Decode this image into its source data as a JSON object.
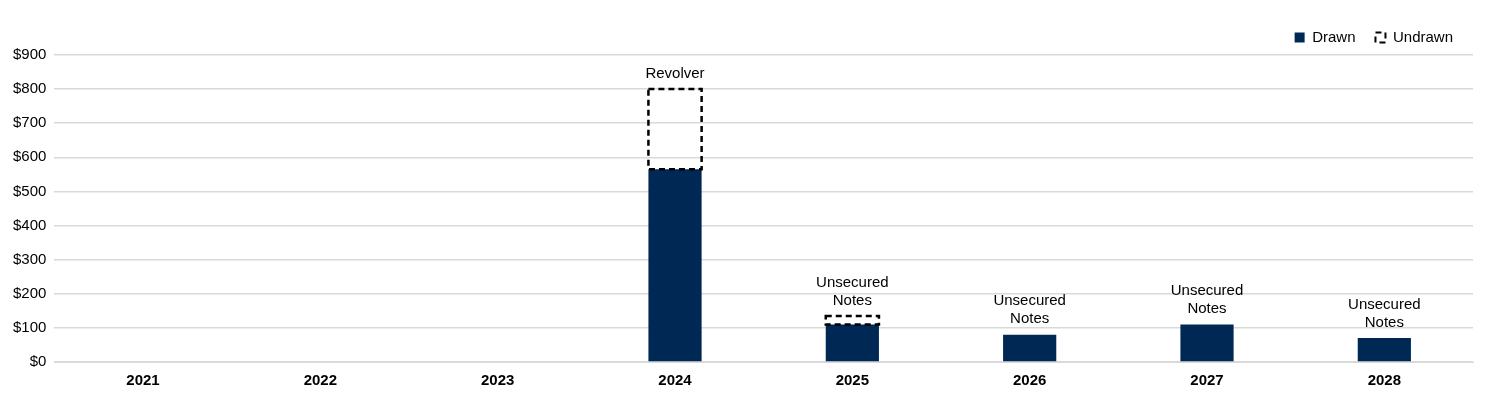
{
  "chart_data": {
    "type": "bar",
    "stacked": true,
    "categories": [
      "2021",
      "2022",
      "2023",
      "2024",
      "2025",
      "2026",
      "2027",
      "2028"
    ],
    "series": [
      {
        "name": "Drawn",
        "color": "#002855",
        "values": [
          null,
          null,
          null,
          565,
          110,
          80,
          110,
          70
        ]
      },
      {
        "name": "Undrawn",
        "color": "#000000",
        "line_style": "dashed",
        "values": [
          null,
          null,
          null,
          235,
          25,
          null,
          null,
          null
        ]
      }
    ],
    "ylim": [
      0,
      900
    ],
    "yticks": [
      {
        "value": 0,
        "label": "$0"
      },
      {
        "value": 100,
        "label": "$100"
      },
      {
        "value": 200,
        "label": "$200"
      },
      {
        "value": 300,
        "label": "$300"
      },
      {
        "value": 400,
        "label": "$400"
      },
      {
        "value": 500,
        "label": "$500"
      },
      {
        "value": 600,
        "label": "$600"
      },
      {
        "value": 700,
        "label": "$700"
      },
      {
        "value": 800,
        "label": "$800"
      },
      {
        "value": 900,
        "label": "$900"
      }
    ],
    "grid": "y",
    "legend": "top right",
    "annotations": [
      {
        "text": "Revolver",
        "x": "2024",
        "y": 800
      },
      {
        "text": "Unsecured Notes",
        "x": "2025",
        "y": 135
      },
      {
        "text": "Unsecured Notes",
        "x": "2026",
        "y": 80
      },
      {
        "text": "Unsecured Notes",
        "x": "2027",
        "y": 110
      },
      {
        "text": "Unsecured Notes",
        "x": "2028",
        "y": 70
      }
    ]
  }
}
